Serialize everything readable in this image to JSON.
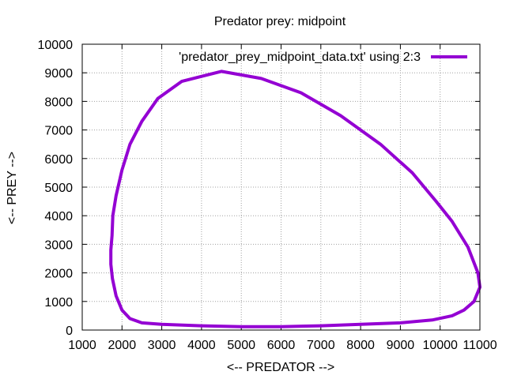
{
  "chart_data": {
    "type": "line",
    "title": "Predator prey: midpoint",
    "xlabel": "<-- PREDATOR -->",
    "ylabel": "<-- PREY -->",
    "xlim": [
      1000,
      11000
    ],
    "ylim": [
      0,
      10000
    ],
    "xticks": [
      1000,
      2000,
      3000,
      4000,
      5000,
      6000,
      7000,
      8000,
      9000,
      10000,
      11000
    ],
    "yticks": [
      0,
      1000,
      2000,
      3000,
      4000,
      5000,
      6000,
      7000,
      8000,
      9000,
      10000
    ],
    "grid": true,
    "legend_position": "top-right",
    "series": [
      {
        "name": "'predator_prey_midpoint_data.txt' using 2:3",
        "color": "#9400d3",
        "x": [
          1750,
          1720,
          1720,
          1760,
          1850,
          2000,
          2200,
          2500,
          3000,
          4000,
          5000,
          6000,
          7000,
          8000,
          9000,
          9800,
          10300,
          10600,
          10850,
          11000,
          10950,
          10700,
          10300,
          9900,
          9300,
          8500,
          7500,
          6500,
          5500,
          4500,
          3500,
          2900,
          2500,
          2200,
          2000,
          1850,
          1770,
          1750
        ],
        "y": [
          3300,
          2800,
          2300,
          1800,
          1200,
          700,
          400,
          250,
          200,
          150,
          120,
          120,
          150,
          200,
          250,
          350,
          500,
          700,
          1000,
          1500,
          2000,
          2900,
          3800,
          4500,
          5500,
          6500,
          7500,
          8300,
          8800,
          9050,
          8700,
          8100,
          7300,
          6500,
          5600,
          4700,
          4000,
          3300
        ]
      }
    ]
  }
}
